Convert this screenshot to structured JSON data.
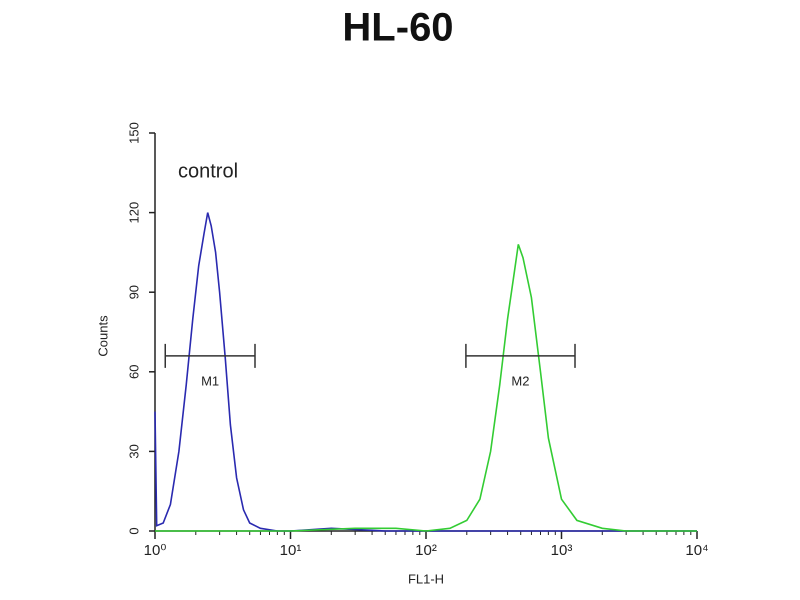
{
  "chart_data": {
    "type": "histogram-line",
    "title": "HL-60",
    "xlabel": "FL1-H",
    "ylabel": "Counts",
    "annotation": "control",
    "xlog": true,
    "xlim": [
      1,
      10000
    ],
    "xticks": [
      {
        "value": 1,
        "label": "10⁰"
      },
      {
        "value": 10,
        "label": "10¹"
      },
      {
        "value": 100,
        "label": "10²"
      },
      {
        "value": 1000,
        "label": "10³"
      },
      {
        "value": 10000,
        "label": "10⁴"
      }
    ],
    "ylim": [
      0,
      150
    ],
    "yticks": [
      0,
      30,
      60,
      90,
      120,
      150
    ],
    "series": [
      {
        "color": "#2a2ab0",
        "x": [
          1,
          1.03,
          1.15,
          1.3,
          1.5,
          1.7,
          1.9,
          2.1,
          2.3,
          2.45,
          2.6,
          2.8,
          3.0,
          3.3,
          3.6,
          4.0,
          4.5,
          5.0,
          6.0,
          8,
          10,
          20,
          50,
          100,
          1000,
          10000
        ],
        "values": [
          45,
          2,
          3,
          10,
          30,
          55,
          80,
          100,
          112,
          120,
          115,
          105,
          90,
          65,
          40,
          20,
          8,
          3,
          1,
          0,
          0,
          1,
          0,
          0,
          0,
          0
        ]
      },
      {
        "color": "#33cc33",
        "x": [
          1,
          10,
          30,
          60,
          100,
          150,
          200,
          250,
          300,
          350,
          400,
          450,
          480,
          520,
          600,
          700,
          800,
          1000,
          1300,
          2000,
          3000,
          10000
        ],
        "values": [
          0,
          0,
          1,
          1,
          0,
          1,
          4,
          12,
          30,
          55,
          80,
          98,
          108,
          103,
          88,
          60,
          35,
          12,
          4,
          1,
          0,
          0
        ]
      }
    ],
    "markers": [
      {
        "label": "M1",
        "range": [
          1.19,
          5.47
        ],
        "y": 66
      },
      {
        "label": "M2",
        "range": [
          197,
          1258
        ],
        "y": 66
      }
    ]
  }
}
